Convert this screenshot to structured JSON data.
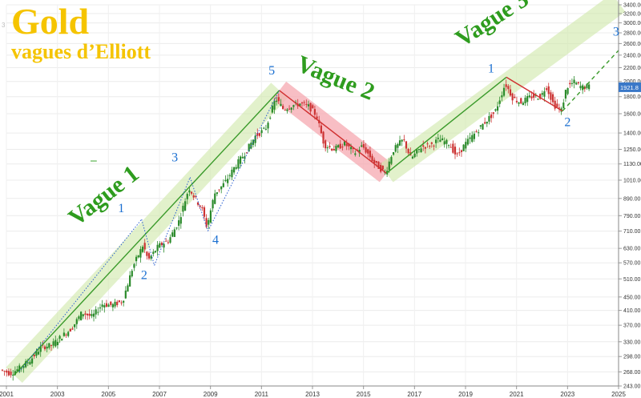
{
  "title": "Gold",
  "subtitle": "vagues d’Elliott",
  "corner_mark": "3",
  "colors": {
    "title": "#f5c400",
    "wave_label": "#2e9c1e",
    "count_label": "#1a6fd1",
    "channel_green": "#cfe8a8",
    "channel_red": "#f5a8b0",
    "up_candle": "#2a8a2a",
    "down_candle": "#cc3333",
    "axis_text": "#333333",
    "price_badge": "#3a78c8"
  },
  "chart_data": {
    "type": "candlestick",
    "scale": "log",
    "xlim": [
      2001,
      2025
    ],
    "ylim": [
      243,
      3400
    ],
    "x_ticks": [
      "2001",
      "2003",
      "2005",
      "2007",
      "2009",
      "2011",
      "2013",
      "2015",
      "2017",
      "2019",
      "2021",
      "2023",
      "2025"
    ],
    "y_ticks": [
      "3400.00",
      "3200.00",
      "3000.00",
      "2800.00",
      "2600.00",
      "2400.00",
      "2200.00",
      "2000.00",
      "1800.00",
      "1600.00",
      "1400.00",
      "1250.00",
      "1130.00",
      "1010.00",
      "890.00",
      "790.00",
      "710.00",
      "630.00",
      "570.00",
      "510.00",
      "450.00",
      "410.00",
      "370.00",
      "330.00",
      "298.00",
      "268.00",
      "243.00"
    ],
    "last_price_label": "1921.8",
    "price_path": [
      [
        2000.8,
        272
      ],
      [
        2001.2,
        265
      ],
      [
        2001.6,
        276
      ],
      [
        2002.0,
        292
      ],
      [
        2002.4,
        318
      ],
      [
        2002.8,
        322
      ],
      [
        2003.2,
        342
      ],
      [
        2003.6,
        362
      ],
      [
        2004.0,
        404
      ],
      [
        2004.4,
        392
      ],
      [
        2004.8,
        428
      ],
      [
        2005.2,
        425
      ],
      [
        2005.6,
        438
      ],
      [
        2006.0,
        555
      ],
      [
        2006.4,
        645
      ],
      [
        2006.6,
        580
      ],
      [
        2007.0,
        640
      ],
      [
        2007.4,
        665
      ],
      [
        2007.8,
        760
      ],
      [
        2008.2,
        960
      ],
      [
        2008.4,
        900
      ],
      [
        2008.7,
        830
      ],
      [
        2008.9,
        730
      ],
      [
        2009.2,
        920
      ],
      [
        2009.6,
        990
      ],
      [
        2010.0,
        1110
      ],
      [
        2010.4,
        1220
      ],
      [
        2010.8,
        1370
      ],
      [
        2011.2,
        1440
      ],
      [
        2011.6,
        1780
      ],
      [
        2011.9,
        1650
      ],
      [
        2012.2,
        1690
      ],
      [
        2012.6,
        1720
      ],
      [
        2012.9,
        1680
      ],
      [
        2013.2,
        1580
      ],
      [
        2013.5,
        1290
      ],
      [
        2013.9,
        1250
      ],
      [
        2014.3,
        1300
      ],
      [
        2014.7,
        1220
      ],
      [
        2015.0,
        1280
      ],
      [
        2015.5,
        1130
      ],
      [
        2015.9,
        1060
      ],
      [
        2016.2,
        1240
      ],
      [
        2016.6,
        1340
      ],
      [
        2016.9,
        1170
      ],
      [
        2017.3,
        1270
      ],
      [
        2017.7,
        1290
      ],
      [
        2018.0,
        1340
      ],
      [
        2018.4,
        1300
      ],
      [
        2018.7,
        1190
      ],
      [
        2019.0,
        1290
      ],
      [
        2019.5,
        1420
      ],
      [
        2019.8,
        1510
      ],
      [
        2020.2,
        1620
      ],
      [
        2020.6,
        1970
      ],
      [
        2020.9,
        1780
      ],
      [
        2021.2,
        1730
      ],
      [
        2021.6,
        1800
      ],
      [
        2022.0,
        1800
      ],
      [
        2022.2,
        1940
      ],
      [
        2022.5,
        1700
      ],
      [
        2022.8,
        1640
      ],
      [
        2023.0,
        1920
      ],
      [
        2023.3,
        1990
      ],
      [
        2023.6,
        1920
      ],
      [
        2023.8,
        1930
      ]
    ],
    "channels": [
      {
        "name": "wave1",
        "from": [
          2001.3,
          262
        ],
        "to": [
          2011.7,
          1880
        ],
        "color": "green"
      },
      {
        "name": "wave2",
        "from": [
          2011.7,
          1880
        ],
        "to": [
          2015.9,
          1060
        ],
        "color": "red"
      },
      {
        "name": "wave3",
        "from": [
          2015.9,
          1060
        ],
        "to": [
          2025.0,
          3450
        ],
        "color": "green"
      }
    ],
    "trend_lines": [
      {
        "from": [
          2001.3,
          262
        ],
        "to": [
          2011.7,
          1880
        ],
        "color": "green",
        "style": "solid"
      },
      {
        "from": [
          2011.7,
          1880
        ],
        "to": [
          2015.9,
          1060
        ],
        "color": "red",
        "style": "solid"
      },
      {
        "from": [
          2015.9,
          1060
        ],
        "to": [
          2020.6,
          2060
        ],
        "color": "green",
        "style": "solid"
      },
      {
        "from": [
          2020.6,
          2060
        ],
        "to": [
          2022.8,
          1630
        ],
        "color": "red",
        "style": "solid"
      },
      {
        "from": [
          2022.8,
          1630
        ],
        "to": [
          2025.0,
          2480
        ],
        "color": "green",
        "style": "dashed"
      },
      {
        "from": [
          2001.5,
          268
        ],
        "to": [
          2006.3,
          770
        ],
        "color": "blue",
        "style": "dotted"
      },
      {
        "from": [
          2006.3,
          770
        ],
        "to": [
          2006.8,
          560
        ],
        "color": "blue",
        "style": "dotted"
      },
      {
        "from": [
          2006.8,
          560
        ],
        "to": [
          2008.2,
          1030
        ],
        "color": "blue",
        "style": "dotted"
      },
      {
        "from": [
          2008.2,
          1030
        ],
        "to": [
          2008.9,
          710
        ],
        "color": "blue",
        "style": "dotted"
      },
      {
        "from": [
          2008.9,
          710
        ],
        "to": [
          2011.7,
          1880
        ],
        "color": "blue",
        "style": "dotted"
      }
    ],
    "wave_labels": [
      {
        "text": "Vague 1",
        "x": 2005.0,
        "y": 870,
        "angle": -38
      },
      {
        "text": "Vague 2",
        "x": 2013.8,
        "y": 1950,
        "angle": 22
      },
      {
        "text": "Vague 3",
        "x": 2020.2,
        "y": 2950,
        "angle": -33
      }
    ],
    "count_labels": [
      {
        "text": "1",
        "x": 2005.5,
        "y": 810
      },
      {
        "text": "2",
        "x": 2006.4,
        "y": 510
      },
      {
        "text": "3",
        "x": 2007.6,
        "y": 1150
      },
      {
        "text": "4",
        "x": 2009.2,
        "y": 650
      },
      {
        "text": "5",
        "x": 2011.4,
        "y": 2100
      },
      {
        "text": "1",
        "x": 2020.0,
        "y": 2130
      },
      {
        "text": "2",
        "x": 2023.0,
        "y": 1470
      },
      {
        "text": "3",
        "x": 2024.9,
        "y": 2750
      }
    ],
    "annotation_dash": {
      "text": "–",
      "x": 2004.3,
      "y": 1130
    }
  }
}
